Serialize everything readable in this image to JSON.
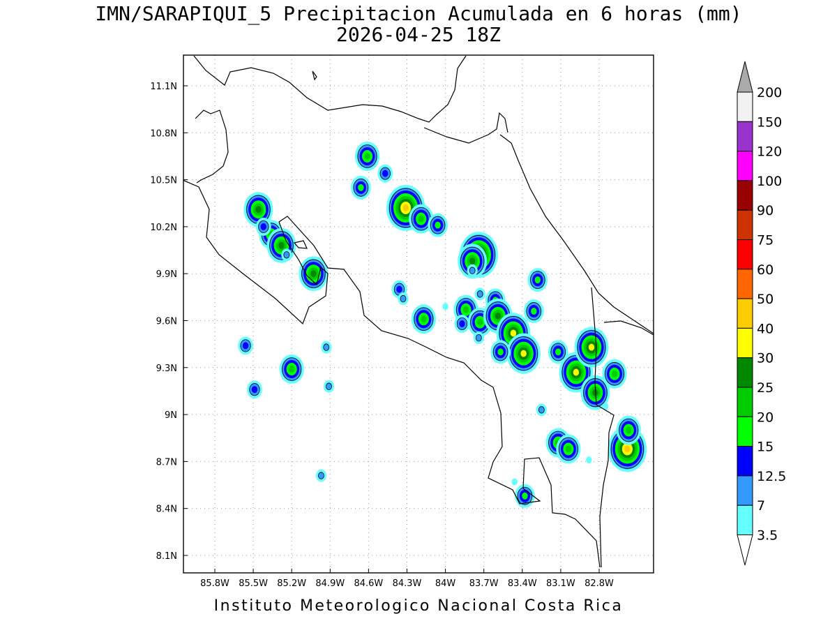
{
  "title": {
    "line1": "IMN/SARAPIQUI_5 Precipitacion Acumulada en 6 horas (mm)",
    "line2": "2026-04-25 18Z"
  },
  "footer": "Instituto Meteorologico Nacional Costa Rica",
  "map": {
    "lon_ticks": [
      "85.8W",
      "85.5W",
      "85.2W",
      "84.9W",
      "84.6W",
      "84.3W",
      "84W",
      "83.7W",
      "83.4W",
      "83.1W",
      "82.8W"
    ],
    "lat_ticks": [
      "11.1N",
      "10.8N",
      "10.5N",
      "10.2N",
      "9.9N",
      "9.6N",
      "9.3N",
      "9N",
      "8.7N",
      "8.4N",
      "8.1N"
    ],
    "grid": true
  },
  "colorbar": {
    "levels": [
      "3.5",
      "7",
      "12.5",
      "15",
      "20",
      "25",
      "30",
      "40",
      "50",
      "60",
      "75",
      "90",
      "100",
      "120",
      "150",
      "200"
    ],
    "colors": [
      "#ffffff",
      "#66ffff",
      "#3399ff",
      "#0000ff",
      "#00ff00",
      "#00cc00",
      "#008800",
      "#ffff00",
      "#ffcc00",
      "#ff6600",
      "#ff0000",
      "#cc3300",
      "#990000",
      "#ff00ff",
      "#9933cc",
      "#f2f2f2",
      "#aaaaaa"
    ]
  },
  "precip_blobs": [
    {
      "lon": -85.46,
      "lat": 10.31,
      "v": 25
    },
    {
      "lon": -85.36,
      "lat": 10.15,
      "v": 20
    },
    {
      "lon": -85.28,
      "lat": 10.08,
      "v": 25
    },
    {
      "lon": -85.03,
      "lat": 9.9,
      "v": 25
    },
    {
      "lon": -84.61,
      "lat": 10.65,
      "v": 20
    },
    {
      "lon": -84.66,
      "lat": 10.45,
      "v": 15
    },
    {
      "lon": -84.47,
      "lat": 10.54,
      "v": 12.5
    },
    {
      "lon": -84.31,
      "lat": 10.32,
      "v": 40
    },
    {
      "lon": -84.19,
      "lat": 10.25,
      "v": 20
    },
    {
      "lon": -84.06,
      "lat": 10.21,
      "v": 15
    },
    {
      "lon": -83.74,
      "lat": 10.02,
      "v": 40
    },
    {
      "lon": -83.79,
      "lat": 9.98,
      "v": 25
    },
    {
      "lon": -83.84,
      "lat": 9.67,
      "v": 20
    },
    {
      "lon": -83.73,
      "lat": 9.59,
      "v": 20
    },
    {
      "lon": -83.87,
      "lat": 9.58,
      "v": 12.5
    },
    {
      "lon": -83.61,
      "lat": 9.73,
      "v": 15
    },
    {
      "lon": -83.59,
      "lat": 9.63,
      "v": 25
    },
    {
      "lon": -83.47,
      "lat": 9.52,
      "v": 30
    },
    {
      "lon": -83.39,
      "lat": 9.39,
      "v": 30
    },
    {
      "lon": -83.57,
      "lat": 9.4,
      "v": 15
    },
    {
      "lon": -83.31,
      "lat": 9.66,
      "v": 15
    },
    {
      "lon": -83.28,
      "lat": 9.86,
      "v": 15
    },
    {
      "lon": -83.12,
      "lat": 9.4,
      "v": 15
    },
    {
      "lon": -82.98,
      "lat": 9.27,
      "v": 30
    },
    {
      "lon": -82.86,
      "lat": 9.43,
      "v": 30
    },
    {
      "lon": -82.83,
      "lat": 9.14,
      "v": 25
    },
    {
      "lon": -82.58,
      "lat": 8.78,
      "v": 40
    },
    {
      "lon": -82.57,
      "lat": 8.9,
      "v": 20
    },
    {
      "lon": -82.68,
      "lat": 9.26,
      "v": 20
    },
    {
      "lon": -83.12,
      "lat": 8.82,
      "v": 20
    },
    {
      "lon": -83.04,
      "lat": 8.78,
      "v": 20
    },
    {
      "lon": -83.38,
      "lat": 8.48,
      "v": 15
    },
    {
      "lon": -84.17,
      "lat": 9.61,
      "v": 20
    },
    {
      "lon": -84.36,
      "lat": 9.8,
      "v": 12.5
    },
    {
      "lon": -85.2,
      "lat": 9.29,
      "v": 20
    },
    {
      "lon": -85.56,
      "lat": 9.44,
      "v": 12.5
    },
    {
      "lon": -85.49,
      "lat": 9.16,
      "v": 12.5
    },
    {
      "lon": -84.91,
      "lat": 9.18,
      "v": 7
    },
    {
      "lon": -84.93,
      "lat": 9.43,
      "v": 7
    },
    {
      "lon": -84.97,
      "lat": 8.61,
      "v": 7
    },
    {
      "lon": -83.25,
      "lat": 9.03,
      "v": 7
    },
    {
      "lon": -83.79,
      "lat": 9.92,
      "v": 7
    },
    {
      "lon": -84.0,
      "lat": 9.69,
      "v": 3.5
    },
    {
      "lon": -84.33,
      "lat": 9.74,
      "v": 7
    },
    {
      "lon": -83.73,
      "lat": 9.77,
      "v": 7
    },
    {
      "lon": -85.42,
      "lat": 10.2,
      "v": 12.5
    },
    {
      "lon": -85.24,
      "lat": 10.02,
      "v": 7
    },
    {
      "lon": -83.74,
      "lat": 9.49,
      "v": 7
    },
    {
      "lon": -82.88,
      "lat": 8.71,
      "v": 3.5
    },
    {
      "lon": -83.46,
      "lat": 8.57,
      "v": 3.5
    },
    {
      "lon": -82.75,
      "lat": 9.05,
      "v": 3.5
    }
  ]
}
